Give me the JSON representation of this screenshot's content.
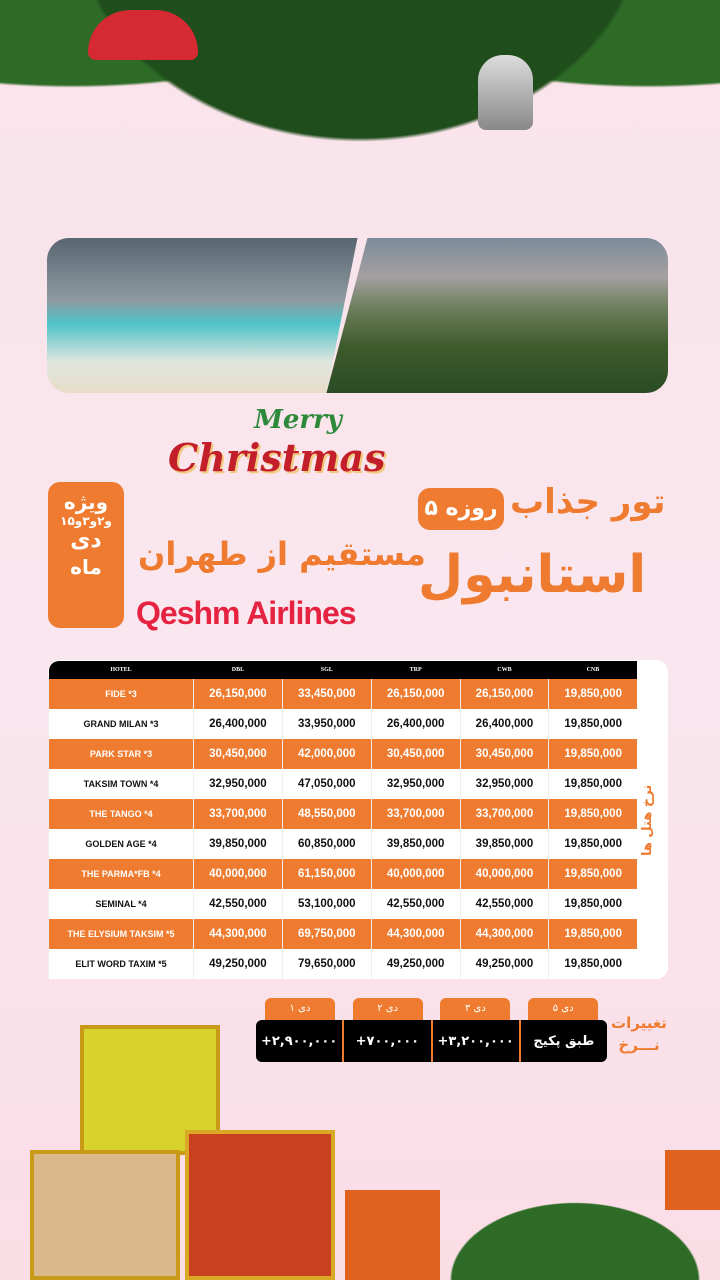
{
  "header": {
    "christmas_logo": "Merry Christmas",
    "tour_title": "تور جذاب",
    "duration_badge": "۵ روزه",
    "destination": "استانبول",
    "departure": "مستقیم از طهران",
    "airline": "Qeshm Airlines",
    "special": {
      "line1": "ویژه",
      "line2": "۱و۲و۳و۵",
      "line3": "دی",
      "line4": "ماه"
    }
  },
  "table": {
    "side_label": "نرخ هتل ها",
    "columns": [
      "HOTEL",
      "DBL",
      "SGL",
      "TRP",
      "CWB",
      "CNB"
    ],
    "rows": [
      [
        "FIDE *3",
        "26,150,000",
        "33,450,000",
        "26,150,000",
        "26,150,000",
        "19,850,000"
      ],
      [
        "GRAND MILAN *3",
        "26,400,000",
        "33,950,000",
        "26,400,000",
        "26,400,000",
        "19,850,000"
      ],
      [
        "PARK STAR *3",
        "30,450,000",
        "42,000,000",
        "30,450,000",
        "30,450,000",
        "19,850,000"
      ],
      [
        "TAKSIM TOWN *4",
        "32,950,000",
        "47,050,000",
        "32,950,000",
        "32,950,000",
        "19,850,000"
      ],
      [
        "THE TANGO *4",
        "33,700,000",
        "48,550,000",
        "33,700,000",
        "33,700,000",
        "19,850,000"
      ],
      [
        "GOLDEN AGE *4",
        "39,850,000",
        "60,850,000",
        "39,850,000",
        "39,850,000",
        "19,850,000"
      ],
      [
        "THE PARMA*FB *4",
        "40,000,000",
        "61,150,000",
        "40,000,000",
        "40,000,000",
        "19,850,000"
      ],
      [
        "SEMINAL *4",
        "42,550,000",
        "53,100,000",
        "42,550,000",
        "42,550,000",
        "19,850,000"
      ],
      [
        "THE ELYSIUM TAKSIM *5",
        "44,300,000",
        "69,750,000",
        "44,300,000",
        "44,300,000",
        "19,850,000"
      ],
      [
        "ELIT WORD TAXIM *5",
        "49,250,000",
        "79,650,000",
        "49,250,000",
        "49,250,000",
        "19,850,000"
      ]
    ]
  },
  "price_changes": {
    "label_line1": "تغییرات",
    "label_line2": "نـــرخ",
    "dates": [
      "۱ دی",
      "۲ دی",
      "۳ دی",
      "۵ دی"
    ],
    "values": [
      "+۲,۹۰۰,۰۰۰",
      "+۷۰۰,۰۰۰",
      "+۳,۲۰۰,۰۰۰",
      "طبق پکیج"
    ]
  },
  "colors": {
    "accent": "#ee7b2f",
    "airline": "#e52240",
    "table_header": "#000000"
  }
}
